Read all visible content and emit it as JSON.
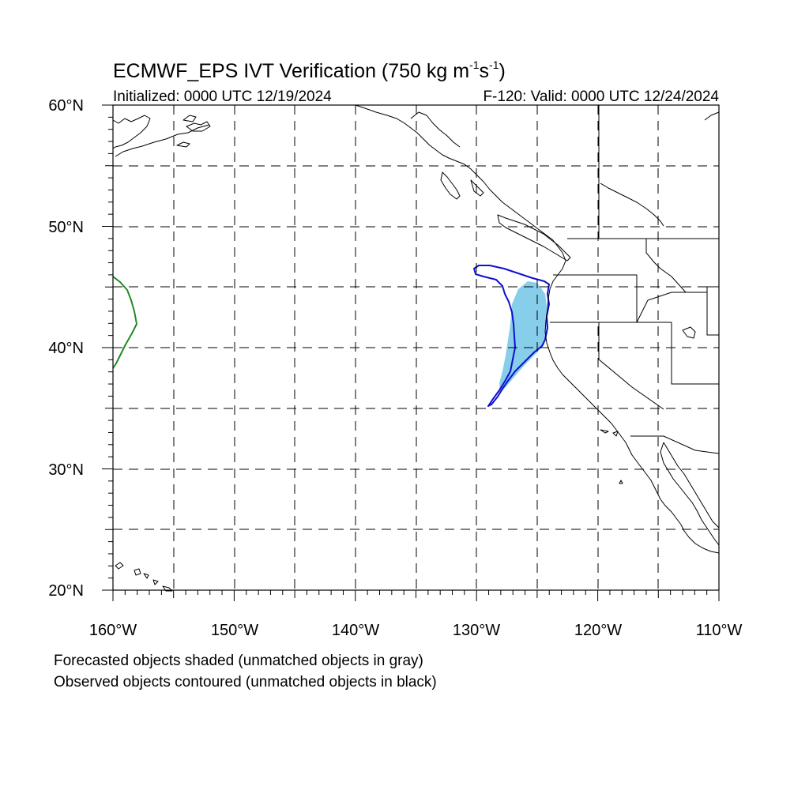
{
  "map": {
    "title_main": "ECMWF_EPS IVT Verification (750 kg m",
    "title_sup1": "-1",
    "title_mid": "s",
    "title_sup2": "-1",
    "title_end": ")",
    "initialized": "Initialized: 0000 UTC 12/19/2024",
    "valid": "F-120: Valid: 0000 UTC 12/24/2024",
    "lat_labels": [
      "60°N",
      "50°N",
      "40°N",
      "30°N",
      "20°N"
    ],
    "lon_labels": [
      "160°W",
      "150°W",
      "140°W",
      "130°W",
      "120°W",
      "110°W"
    ],
    "extent": {
      "lon_min": -160,
      "lon_max": -110,
      "lat_min": 20,
      "lat_max": 60
    },
    "legend_line1": "Forecasted objects shaded (unmatched objects in gray)",
    "legend_line2": "Observed objects contoured (unmatched objects in black)",
    "colors": {
      "forecast_matched_fill": "#87CEEB",
      "observed_matched_contour": "#1010D0",
      "observed_other_contour": "#228B22"
    }
  }
}
